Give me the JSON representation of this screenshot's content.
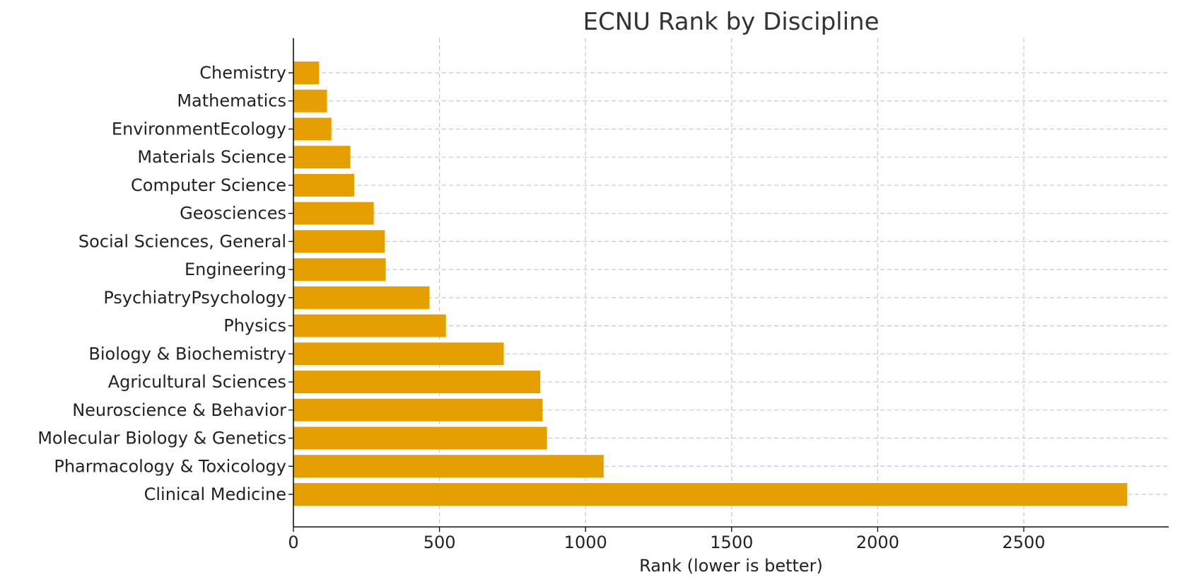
{
  "chart_data": {
    "type": "bar",
    "orientation": "horizontal",
    "title": "ECNU Rank by Discipline",
    "xlabel": "Rank (lower is better)",
    "ylabel": "",
    "categories": [
      "Chemistry",
      "Mathematics",
      "EnvironmentEcology",
      "Materials Science",
      "Computer Science",
      "Geosciences",
      "Social Sciences, General",
      "Engineering",
      "PsychiatryPsychology",
      "Physics",
      "Biology & Biochemistry",
      "Agricultural Sciences",
      "Neuroscience & Behavior",
      "Molecular Biology & Genetics",
      "Pharmacology & Toxicology",
      "Clinical Medicine"
    ],
    "values": [
      88,
      115,
      130,
      195,
      208,
      275,
      313,
      316,
      466,
      522,
      720,
      845,
      853,
      868,
      1062,
      2854
    ],
    "xlim": [
      0,
      2996
    ],
    "xticks": [
      0,
      500,
      1000,
      1500,
      2000,
      2500
    ],
    "grid": true,
    "bar_color": "#e69f00",
    "legend": "none"
  }
}
